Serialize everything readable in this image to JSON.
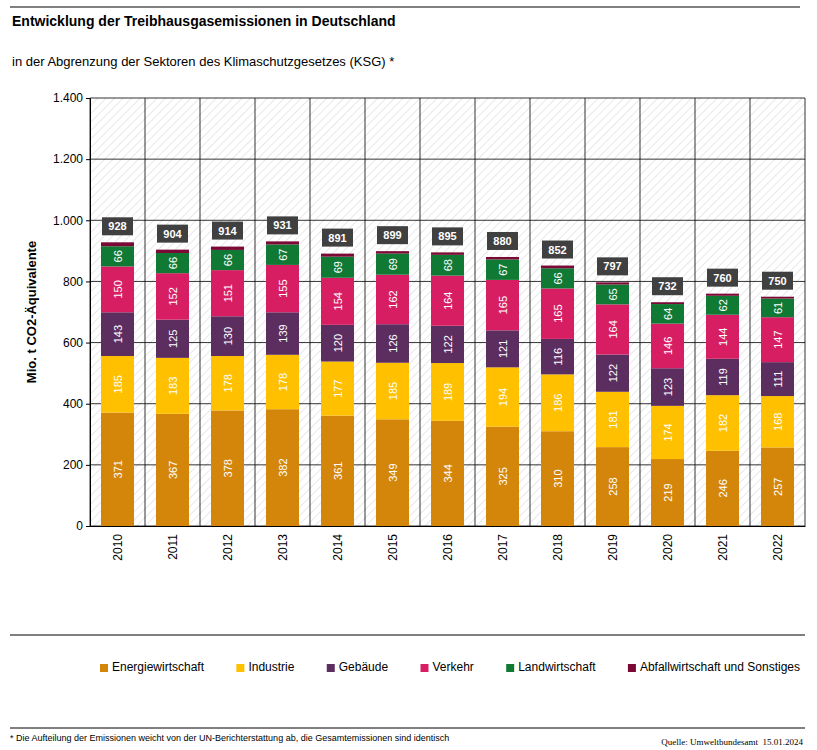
{
  "chart_data": {
    "type": "bar",
    "title": "Entwicklung der Treibhausgasemissionen in Deutschland",
    "subtitle": "in der Abgrenzung der Sektoren des Klimaschutzgesetzes (KSG) *",
    "y_label": "Mio. t CO2-Äquivalente",
    "footnote": "* Die Aufteilung der Emissionen weicht von der UN-Berichterstattung ab, die Gesamtemissionen sind identisch",
    "source": "Quelle: Umweltbundesamt  15.01.2024",
    "categories": [
      "2010",
      "2011",
      "2012",
      "2013",
      "2014",
      "2015",
      "2016",
      "2017",
      "2018",
      "2019",
      "2020",
      "2021",
      "2022"
    ],
    "series": [
      {
        "name": "Energiewirtschaft",
        "color": "#d4860b",
        "values": [
          371,
          367,
          378,
          382,
          361,
          349,
          344,
          325,
          310,
          258,
          219,
          246,
          257
        ]
      },
      {
        "name": "Industrie",
        "color": "#ffc000",
        "values": [
          185,
          183,
          178,
          178,
          177,
          185,
          189,
          194,
          186,
          181,
          174,
          182,
          168
        ]
      },
      {
        "name": "Gebäude",
        "color": "#5c2d5f",
        "values": [
          143,
          125,
          130,
          139,
          120,
          126,
          122,
          121,
          116,
          122,
          123,
          119,
          111
        ]
      },
      {
        "name": "Verkehr",
        "color": "#d81e63",
        "values": [
          150,
          152,
          151,
          155,
          154,
          162,
          164,
          165,
          165,
          164,
          146,
          144,
          147
        ]
      },
      {
        "name": "Landwirtschaft",
        "color": "#107a35",
        "values": [
          66,
          66,
          66,
          67,
          69,
          69,
          68,
          67,
          66,
          65,
          64,
          62,
          61
        ]
      },
      {
        "name": "Abfallwirtschaft und Sonstiges",
        "color": "#7a0a35",
        "values": [
          13,
          11,
          11,
          10,
          10,
          8,
          8,
          8,
          9,
          7,
          6,
          7,
          6
        ],
        "data_labels": false
      }
    ],
    "totals": [
      928,
      904,
      914,
      931,
      891,
      899,
      895,
      880,
      852,
      797,
      732,
      760,
      750
    ],
    "ylim": [
      0,
      1400
    ],
    "yticks": [
      0,
      200,
      400,
      600,
      800,
      {
        "value": 1000,
        "label": "1.000"
      },
      {
        "value": 1200,
        "label": "1.200"
      },
      {
        "value": 1400,
        "label": "1.400"
      }
    ],
    "stacked": true,
    "data_labels": true,
    "grid": true,
    "legend": "bottom"
  }
}
